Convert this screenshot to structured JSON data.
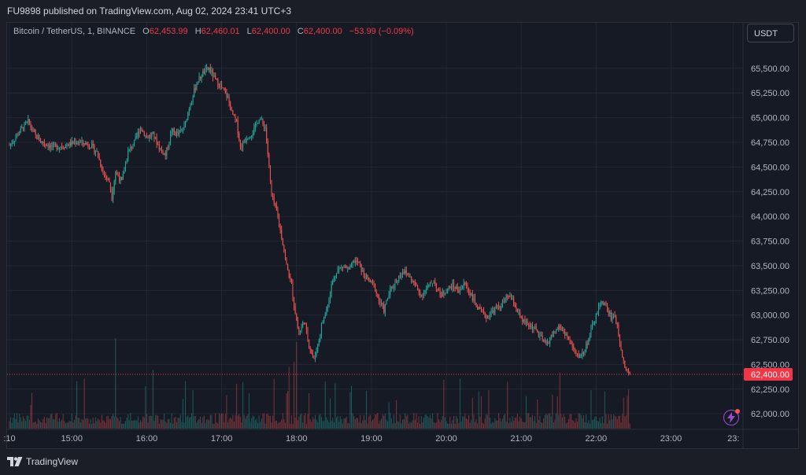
{
  "header": {
    "published_text": "FU9898 published on TradingView.com, Aug 02, 2024 23:41 UTC+3"
  },
  "symbol_info": {
    "name": "Bitcoin / TetherUS, 1, BINANCE",
    "o_label": "O",
    "o_value": "62,453.99",
    "h_label": "H",
    "h_value": "62,460.01",
    "l_label": "L",
    "l_value": "62,400.00",
    "c_label": "C",
    "c_value": "62,400.00",
    "change": "−53.99 (−0.09%)"
  },
  "currency_button": "USDT",
  "footer": {
    "brand": "TradingView"
  },
  "colors": {
    "up": "#26a69a",
    "down": "#ef5350",
    "price_tag": "#f23645",
    "grid": "#232733",
    "text": "#b2b5be"
  },
  "chart_data": {
    "type": "candlestick",
    "symbol": "Bitcoin / TetherUS",
    "interval": "1",
    "exchange": "BINANCE",
    "last_price": 62400.0,
    "last_price_label": "62,400.00",
    "ylim": [
      61850,
      65730
    ],
    "y_ticks": [
      {
        "value": 65500,
        "label": "65,500.00"
      },
      {
        "value": 65250,
        "label": "65,250.00"
      },
      {
        "value": 65000,
        "label": "65,000.00"
      },
      {
        "value": 64750,
        "label": "64,750.00"
      },
      {
        "value": 64500,
        "label": "64,500.00"
      },
      {
        "value": 64250,
        "label": "64,250.00"
      },
      {
        "value": 64000,
        "label": "64,000.00"
      },
      {
        "value": 63750,
        "label": "63,750.00"
      },
      {
        "value": 63500,
        "label": "63,500.00"
      },
      {
        "value": 63250,
        "label": "63,250.00"
      },
      {
        "value": 63000,
        "label": "63,000.00"
      },
      {
        "value": 62750,
        "label": "62,750.00"
      },
      {
        "value": 62500,
        "label": "62,500.00"
      },
      {
        "value": 62250,
        "label": "62,250.00"
      },
      {
        "value": 62000,
        "label": "62,000.00"
      }
    ],
    "x_range_minutes": [
      850,
      1415
    ],
    "x_ticks": [
      {
        "minute": 850,
        "label": ":10"
      },
      {
        "minute": 900,
        "label": "15:00"
      },
      {
        "minute": 960,
        "label": "16:00"
      },
      {
        "minute": 1020,
        "label": "17:00"
      },
      {
        "minute": 1080,
        "label": "18:00"
      },
      {
        "minute": 1140,
        "label": "19:00"
      },
      {
        "minute": 1200,
        "label": "20:00"
      },
      {
        "minute": 1260,
        "label": "21:00"
      },
      {
        "minute": 1320,
        "label": "22:00"
      },
      {
        "minute": 1380,
        "label": "23:00"
      },
      {
        "minute": 1430,
        "label": "23:"
      }
    ],
    "close_anchors": [
      [
        850,
        64720
      ],
      [
        855,
        64800
      ],
      [
        858,
        64860
      ],
      [
        865,
        64960
      ],
      [
        870,
        64830
      ],
      [
        875,
        64760
      ],
      [
        885,
        64700
      ],
      [
        895,
        64720
      ],
      [
        905,
        64760
      ],
      [
        915,
        64720
      ],
      [
        920,
        64650
      ],
      [
        925,
        64450
      ],
      [
        930,
        64350
      ],
      [
        932,
        64200
      ],
      [
        935,
        64450
      ],
      [
        940,
        64350
      ],
      [
        945,
        64650
      ],
      [
        950,
        64750
      ],
      [
        955,
        64900
      ],
      [
        960,
        64800
      ],
      [
        965,
        64830
      ],
      [
        970,
        64700
      ],
      [
        975,
        64620
      ],
      [
        980,
        64870
      ],
      [
        985,
        64830
      ],
      [
        990,
        64900
      ],
      [
        995,
        65150
      ],
      [
        1000,
        65350
      ],
      [
        1005,
        65450
      ],
      [
        1010,
        65500
      ],
      [
        1015,
        65380
      ],
      [
        1020,
        65300
      ],
      [
        1025,
        65200
      ],
      [
        1028,
        65050
      ],
      [
        1032,
        64950
      ],
      [
        1035,
        64700
      ],
      [
        1040,
        64800
      ],
      [
        1045,
        64850
      ],
      [
        1050,
        65000
      ],
      [
        1055,
        64900
      ],
      [
        1058,
        64500
      ],
      [
        1060,
        64200
      ],
      [
        1064,
        64050
      ],
      [
        1068,
        63800
      ],
      [
        1072,
        63500
      ],
      [
        1076,
        63300
      ],
      [
        1078,
        63100
      ],
      [
        1082,
        62800
      ],
      [
        1086,
        62950
      ],
      [
        1090,
        62700
      ],
      [
        1094,
        62550
      ],
      [
        1098,
        62750
      ],
      [
        1100,
        62900
      ],
      [
        1104,
        63050
      ],
      [
        1108,
        63300
      ],
      [
        1112,
        63450
      ],
      [
        1118,
        63500
      ],
      [
        1122,
        63450
      ],
      [
        1126,
        63550
      ],
      [
        1130,
        63520
      ],
      [
        1134,
        63400
      ],
      [
        1138,
        63350
      ],
      [
        1142,
        63300
      ],
      [
        1146,
        63150
      ],
      [
        1150,
        63050
      ],
      [
        1155,
        63250
      ],
      [
        1160,
        63350
      ],
      [
        1165,
        63450
      ],
      [
        1170,
        63400
      ],
      [
        1175,
        63300
      ],
      [
        1180,
        63200
      ],
      [
        1185,
        63280
      ],
      [
        1190,
        63350
      ],
      [
        1195,
        63200
      ],
      [
        1200,
        63250
      ],
      [
        1205,
        63300
      ],
      [
        1210,
        63250
      ],
      [
        1215,
        63320
      ],
      [
        1220,
        63200
      ],
      [
        1226,
        63050
      ],
      [
        1232,
        62980
      ],
      [
        1238,
        63050
      ],
      [
        1244,
        63100
      ],
      [
        1250,
        63200
      ],
      [
        1255,
        63100
      ],
      [
        1260,
        62950
      ],
      [
        1265,
        62900
      ],
      [
        1270,
        62880
      ],
      [
        1275,
        62780
      ],
      [
        1280,
        62700
      ],
      [
        1285,
        62800
      ],
      [
        1290,
        62880
      ],
      [
        1295,
        62820
      ],
      [
        1300,
        62700
      ],
      [
        1305,
        62580
      ],
      [
        1310,
        62620
      ],
      [
        1315,
        62800
      ],
      [
        1320,
        63000
      ],
      [
        1325,
        63150
      ],
      [
        1328,
        63080
      ],
      [
        1332,
        62980
      ],
      [
        1335,
        63000
      ],
      [
        1338,
        62800
      ],
      [
        1341,
        62600
      ],
      [
        1343,
        62480
      ],
      [
        1345,
        62450
      ],
      [
        1347,
        62400
      ]
    ]
  }
}
